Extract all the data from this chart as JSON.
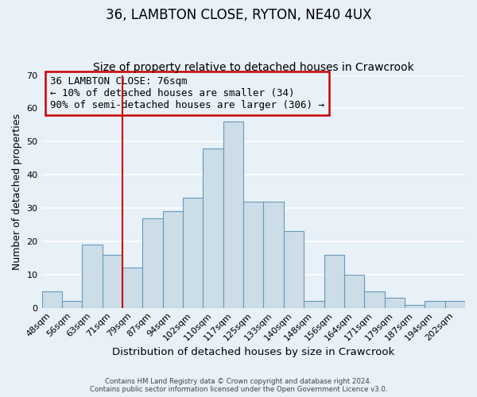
{
  "title": "36, LAMBTON CLOSE, RYTON, NE40 4UX",
  "subtitle": "Size of property relative to detached houses in Crawcrook",
  "xlabel": "Distribution of detached houses by size in Crawcrook",
  "ylabel": "Number of detached properties",
  "footer_line1": "Contains HM Land Registry data © Crown copyright and database right 2024.",
  "footer_line2": "Contains public sector information licensed under the Open Government Licence v3.0.",
  "bin_labels": [
    "48sqm",
    "56sqm",
    "63sqm",
    "71sqm",
    "79sqm",
    "87sqm",
    "94sqm",
    "102sqm",
    "110sqm",
    "117sqm",
    "125sqm",
    "133sqm",
    "140sqm",
    "148sqm",
    "156sqm",
    "164sqm",
    "171sqm",
    "179sqm",
    "187sqm",
    "194sqm",
    "202sqm"
  ],
  "bar_values": [
    5,
    2,
    19,
    16,
    12,
    27,
    29,
    33,
    48,
    56,
    32,
    32,
    23,
    2,
    16,
    10,
    5,
    3,
    1,
    2,
    2
  ],
  "bar_color": "#ccdde8",
  "bar_edgecolor": "#6699bb",
  "ylim": [
    0,
    70
  ],
  "yticks": [
    0,
    10,
    20,
    30,
    40,
    50,
    60,
    70
  ],
  "annotation_title": "36 LAMBTON CLOSE: 76sqm",
  "annotation_line2": "← 10% of detached houses are smaller (34)",
  "annotation_line3": "90% of semi-detached houses are larger (306) →",
  "vline_x_index": 4,
  "vline_color": "#cc0000",
  "box_color": "#cc0000",
  "bg_color": "#e8f0f8",
  "grid_color": "#ffffff",
  "title_fontsize": 12,
  "subtitle_fontsize": 10,
  "xlabel_fontsize": 9.5,
  "ylabel_fontsize": 9,
  "annotation_fontsize": 9,
  "tick_fontsize": 8
}
